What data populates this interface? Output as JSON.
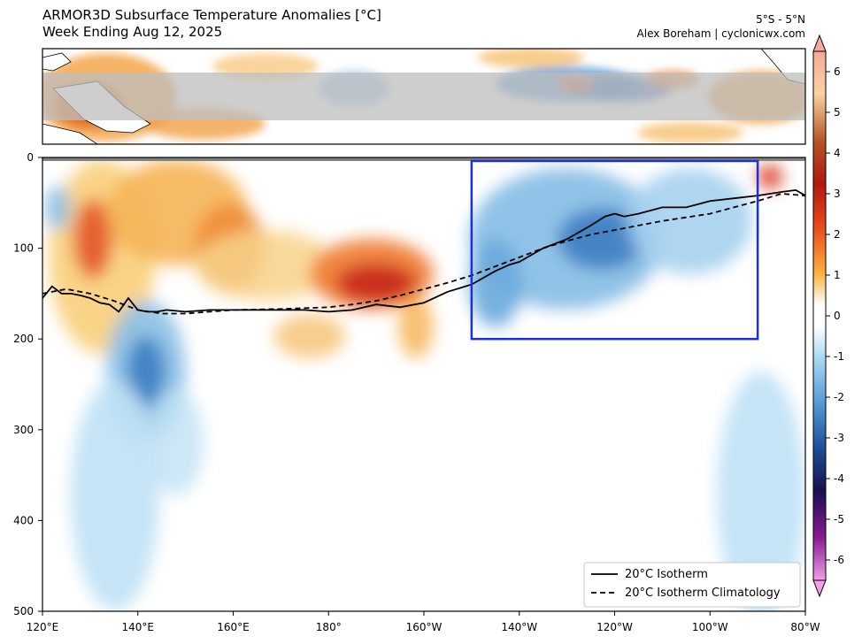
{
  "header": {
    "title_line1": "ARMOR3D Subsurface Temperature Anomalies [°C]",
    "title_line2": "Week Ending Aug 12, 2025",
    "region": "5°S - 5°N",
    "credit": "Alex Boreham | cyclonicwx.com"
  },
  "chart_data": {
    "type": "heatmap",
    "title": "ARMOR3D Subsurface Temperature Anomalies [°C]",
    "subtitle": "Week Ending Aug 12, 2025",
    "x_ticks": [
      "120°E",
      "140°E",
      "160°E",
      "180°",
      "160°W",
      "140°W",
      "120°W",
      "100°W",
      "80°W"
    ],
    "x_tick_lon": [
      120,
      140,
      160,
      180,
      200,
      220,
      240,
      260,
      280
    ],
    "xlim": [
      120,
      280
    ],
    "y_ticks": [
      "0",
      "100",
      "200",
      "300",
      "400",
      "500"
    ],
    "y_tick_values": [
      0,
      100,
      200,
      300,
      400,
      500
    ],
    "ylim": [
      500,
      0
    ],
    "colorbar": {
      "ticks": [
        "6",
        "5",
        "4",
        "3",
        "2",
        "1",
        "0",
        "-1",
        "-2",
        "-3",
        "-4",
        "-5",
        "-6"
      ],
      "range": [
        -6.5,
        6.5
      ],
      "extend": "both"
    },
    "series": [
      {
        "name": "20°C Isotherm",
        "style": "solid",
        "lon": [
          120,
          122,
          124,
          126,
          128,
          130,
          132,
          134,
          136,
          138,
          140,
          142,
          144,
          146,
          150,
          155,
          160,
          165,
          170,
          175,
          180,
          185,
          190,
          195,
          200,
          205,
          210,
          215,
          218,
          220,
          225,
          230,
          235,
          238,
          240,
          242,
          245,
          250,
          255,
          260,
          265,
          270,
          275,
          278,
          280
        ],
        "depth": [
          155,
          142,
          150,
          150,
          152,
          155,
          160,
          162,
          170,
          155,
          168,
          170,
          170,
          168,
          170,
          168,
          168,
          168,
          168,
          168,
          170,
          168,
          162,
          165,
          160,
          148,
          140,
          125,
          118,
          115,
          100,
          90,
          75,
          65,
          62,
          65,
          62,
          55,
          55,
          48,
          45,
          42,
          38,
          36,
          42
        ]
      },
      {
        "name": "20°C Isotherm Climatology",
        "style": "dashed",
        "lon": [
          120,
          125,
          130,
          135,
          140,
          145,
          150,
          155,
          160,
          170,
          180,
          185,
          190,
          195,
          200,
          205,
          210,
          215,
          220,
          225,
          230,
          235,
          240,
          245,
          250,
          255,
          260,
          265,
          270,
          275,
          280
        ],
        "depth": [
          150,
          145,
          150,
          158,
          168,
          172,
          172,
          170,
          168,
          167,
          165,
          162,
          158,
          152,
          145,
          138,
          130,
          120,
          110,
          100,
          92,
          85,
          80,
          75,
          70,
          66,
          62,
          55,
          48,
          40,
          42
        ]
      }
    ],
    "anomaly_features": [
      {
        "lon": 130,
        "depth": 90,
        "anomaly": 2.0
      },
      {
        "lon": 155,
        "depth": 110,
        "anomaly": 1.5
      },
      {
        "lon": 170,
        "depth": 140,
        "anomaly": 2.5
      },
      {
        "lon": 145,
        "depth": 230,
        "anomaly": -2.5
      },
      {
        "lon": 240,
        "depth": 90,
        "anomaly": -3.0
      },
      {
        "lon": 225,
        "depth": 150,
        "anomaly": -2.0
      },
      {
        "lon": 278,
        "depth": 20,
        "anomaly": 3.0
      },
      {
        "lon": 275,
        "depth": 380,
        "anomaly": -1.2
      }
    ],
    "box": {
      "lon": [
        210,
        270
      ],
      "depth": [
        0,
        200
      ]
    },
    "legend_position": "bottom-right"
  },
  "legend": {
    "item1": "20°C Isotherm",
    "item2": "20°C Isotherm Climatology"
  }
}
